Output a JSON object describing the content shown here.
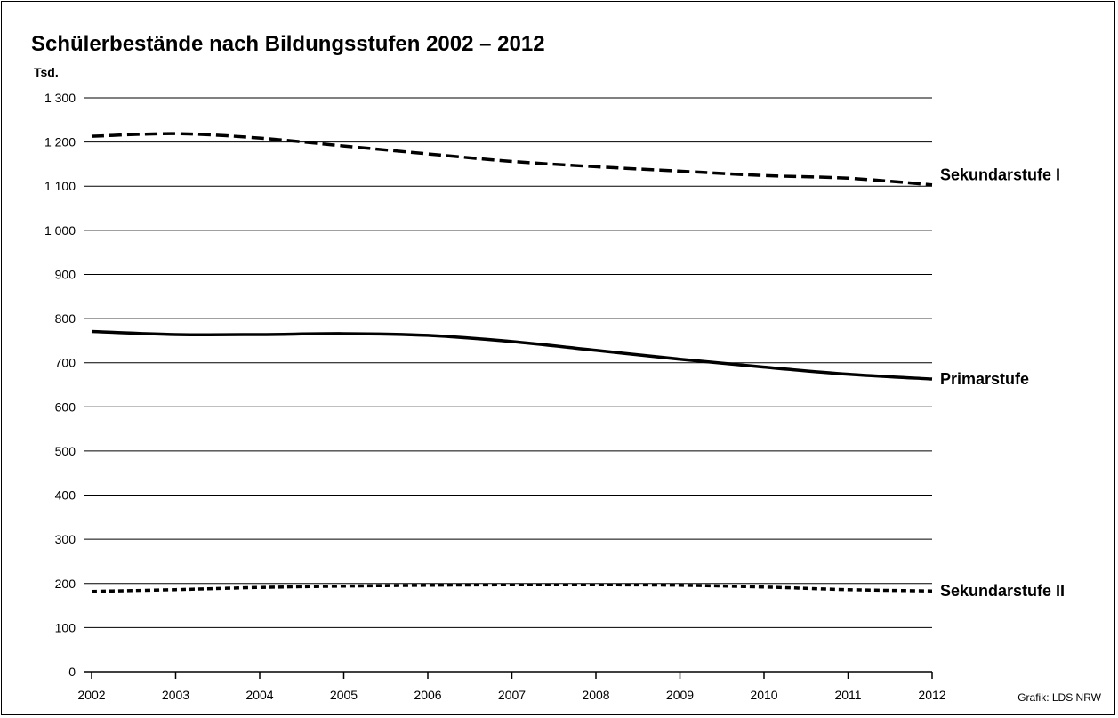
{
  "chart_data": {
    "type": "line",
    "title": "Schülerbestände nach Bildungsstufen 2002 – 2012",
    "unit_label": "Tsd.",
    "source": "Grafik: LDS NRW",
    "x": [
      2002,
      2003,
      2004,
      2005,
      2006,
      2007,
      2008,
      2009,
      2010,
      2011,
      2012
    ],
    "y_ticks": [
      0,
      100,
      200,
      300,
      400,
      500,
      600,
      700,
      800,
      900,
      1000,
      1100,
      1200,
      1300
    ],
    "y_tick_labels": [
      "0",
      "100",
      "200",
      "300",
      "400",
      "500",
      "600",
      "700",
      "800",
      "900",
      "1 000",
      "1 100",
      "1 200",
      "1 300"
    ],
    "ylim": [
      0,
      1300
    ],
    "grid": true,
    "series": [
      {
        "name": "Sekundarstufe I",
        "style": "dashed",
        "values": [
          1213,
          1219,
          1209,
          1191,
          1173,
          1156,
          1144,
          1134,
          1124,
          1118,
          1103
        ]
      },
      {
        "name": "Primarstufe",
        "style": "solid",
        "values": [
          771,
          764,
          764,
          766,
          762,
          748,
          728,
          708,
          690,
          674,
          663
        ]
      },
      {
        "name": "Sekundarstufe II",
        "style": "dotted",
        "values": [
          182,
          186,
          191,
          194,
          196,
          197,
          197,
          196,
          192,
          186,
          183
        ]
      }
    ]
  }
}
